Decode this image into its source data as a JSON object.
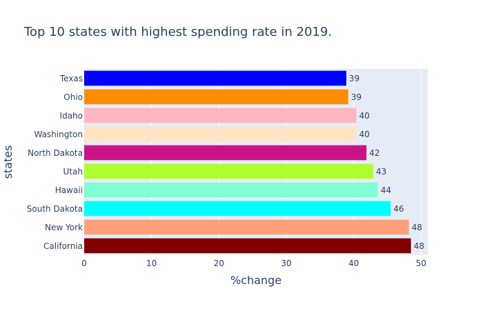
{
  "chart_data": {
    "type": "bar",
    "orientation": "horizontal",
    "title": "Top 10 states with highest spending rate in 2019.",
    "xlabel": "%change",
    "ylabel": "states",
    "xlim": [
      0,
      51
    ],
    "x_ticks": [
      0,
      10,
      20,
      30,
      40,
      50
    ],
    "grid": true,
    "categories": [
      "Texas",
      "Ohio",
      "Idaho",
      "Washington",
      "North Dakota",
      "Utah",
      "Hawaii",
      "South Dakota",
      "New York",
      "California"
    ],
    "values": [
      38.9,
      39.2,
      40.4,
      40.4,
      41.9,
      42.9,
      43.6,
      45.5,
      48.2,
      48.5
    ],
    "data_labels": [
      "39",
      "39",
      "40",
      "40",
      "42",
      "43",
      "44",
      "46",
      "48",
      "48"
    ],
    "colors": [
      "#0000ff",
      "#ff8c00",
      "#ffb6c1",
      "#ffe4c4",
      "#c71585",
      "#adff2f",
      "#7fffd4",
      "#00ffff",
      "#ffa07a",
      "#800000"
    ]
  }
}
